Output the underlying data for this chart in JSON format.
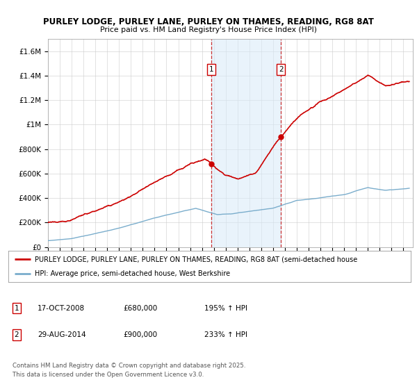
{
  "title1": "PURLEY LODGE, PURLEY LANE, PURLEY ON THAMES, READING, RG8 8AT",
  "title2": "Price paid vs. HM Land Registry's House Price Index (HPI)",
  "ylim": [
    0,
    1700000
  ],
  "yticks": [
    0,
    200000,
    400000,
    600000,
    800000,
    1000000,
    1200000,
    1400000,
    1600000
  ],
  "ytick_labels": [
    "£0",
    "£200K",
    "£400K",
    "£600K",
    "£800K",
    "£1M",
    "£1.2M",
    "£1.4M",
    "£1.6M"
  ],
  "sale1_date": 2008.79,
  "sale1_price": 680000,
  "sale1_label": "1",
  "sale1_text": "17-OCT-2008",
  "sale1_amount": "£680,000",
  "sale1_hpi": "195% ↑ HPI",
  "sale2_date": 2014.66,
  "sale2_price": 900000,
  "sale2_label": "2",
  "sale2_text": "29-AUG-2014",
  "sale2_amount": "£900,000",
  "sale2_hpi": "233% ↑ HPI",
  "property_color": "#cc0000",
  "hpi_color": "#7aadcc",
  "shade_color": "#d8eaf8",
  "legend_property": "PURLEY LODGE, PURLEY LANE, PURLEY ON THAMES, READING, RG8 8AT (semi-detached house",
  "legend_hpi": "HPI: Average price, semi-detached house, West Berkshire",
  "footer": "Contains HM Land Registry data © Crown copyright and database right 2025.\nThis data is licensed under the Open Government Licence v3.0."
}
